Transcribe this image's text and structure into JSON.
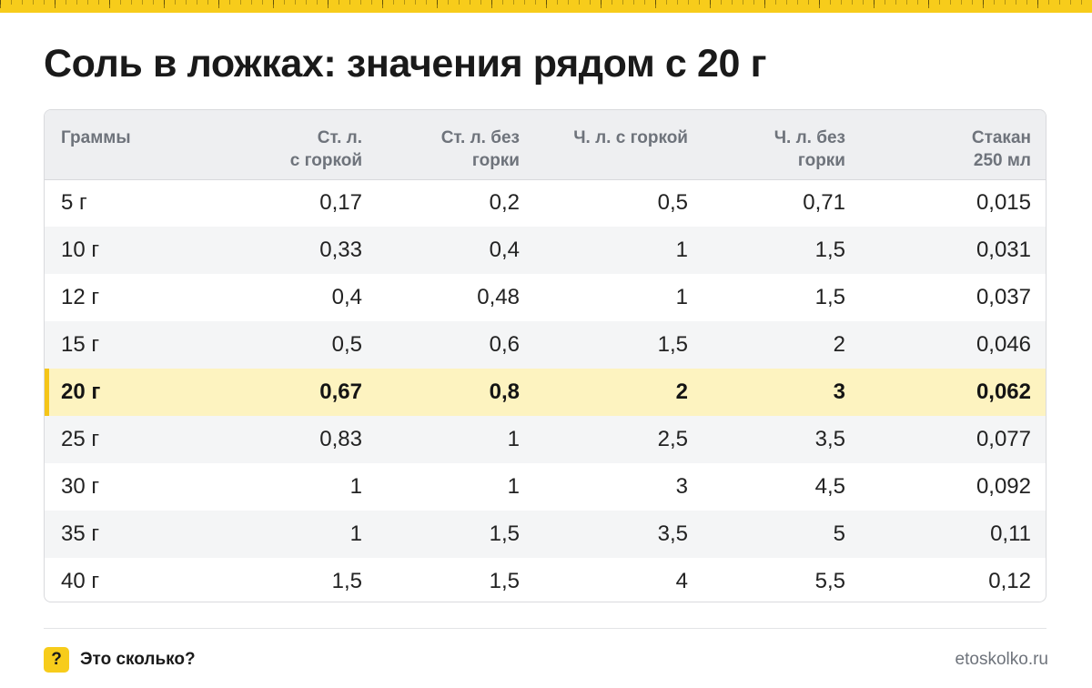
{
  "title": "Соль в ложках: значения рядом с 20 г",
  "table": {
    "headers": [
      [
        "Граммы"
      ],
      [
        "Ст. л.",
        "с горкой"
      ],
      [
        "Ст. л. без",
        "горки"
      ],
      [
        "Ч. л. с горкой"
      ],
      [
        "Ч. л. без",
        "горки"
      ],
      [
        "Стакан",
        "250 мл"
      ]
    ],
    "highlighted_row": 4,
    "rows": [
      [
        "5 г",
        "0,17",
        "0,2",
        "0,5",
        "0,71",
        "0,015"
      ],
      [
        "10 г",
        "0,33",
        "0,4",
        "1",
        "1,5",
        "0,031"
      ],
      [
        "12 г",
        "0,4",
        "0,48",
        "1",
        "1,5",
        "0,037"
      ],
      [
        "15 г",
        "0,5",
        "0,6",
        "1,5",
        "2",
        "0,046"
      ],
      [
        "20 г",
        "0,67",
        "0,8",
        "2",
        "3",
        "0,062"
      ],
      [
        "25 г",
        "0,83",
        "1",
        "2,5",
        "3,5",
        "0,077"
      ],
      [
        "30 г",
        "1",
        "1",
        "3",
        "4,5",
        "0,092"
      ],
      [
        "35 г",
        "1",
        "1,5",
        "3,5",
        "5",
        "0,11"
      ],
      [
        "40 г",
        "1,5",
        "1,5",
        "4",
        "5,5",
        "0,12"
      ]
    ]
  },
  "footer": {
    "badge": "?",
    "brand": "Это сколько?",
    "site": "etoskolko.ru"
  },
  "colors": {
    "accent": "#f7cc1b",
    "highlight_row": "#fdf3c0",
    "header_bg": "#eeeff1",
    "stripe": "#f4f5f6"
  }
}
